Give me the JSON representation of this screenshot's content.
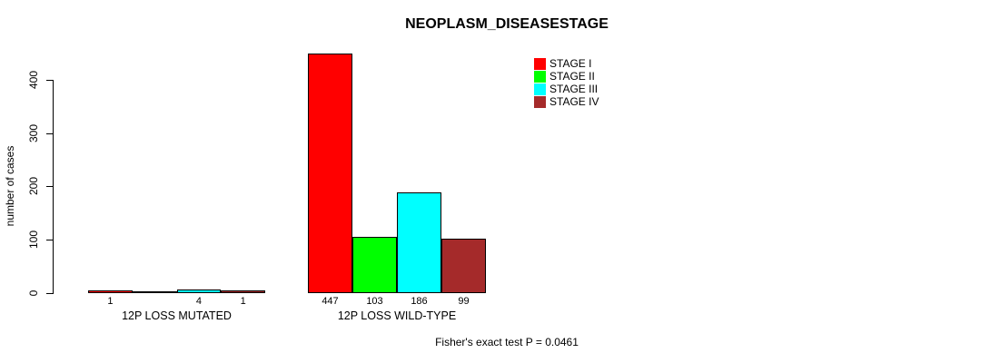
{
  "chart_data": {
    "type": "bar",
    "title": "NEOPLASM_DISEASESTAGE",
    "xlabel": "",
    "ylabel": "number of cases",
    "ylim": [
      0,
      450
    ],
    "yticks": [
      0,
      100,
      200,
      300,
      400
    ],
    "grid": false,
    "legend_position": "top-right",
    "categories": [
      "12P LOSS MUTATED",
      "12P LOSS WILD-TYPE"
    ],
    "series": [
      {
        "name": "STAGE I",
        "color": "#FF0000",
        "values": [
          1,
          447
        ]
      },
      {
        "name": "STAGE II",
        "color": "#00FF00",
        "values": [
          0,
          103
        ]
      },
      {
        "name": "STAGE III",
        "color": "#00FFFF",
        "values": [
          4,
          186
        ]
      },
      {
        "name": "STAGE IV",
        "color": "#A52A2A",
        "values": [
          1,
          99
        ]
      }
    ],
    "bar_labels": [
      [
        "1",
        "",
        "4",
        "1"
      ],
      [
        "447",
        "103",
        "186",
        "99"
      ]
    ],
    "annotation": "Fisher's exact test P = 0.0461"
  },
  "colors": {
    "background": "#FFFFFF",
    "axis": "#000000",
    "text": "#000000"
  }
}
